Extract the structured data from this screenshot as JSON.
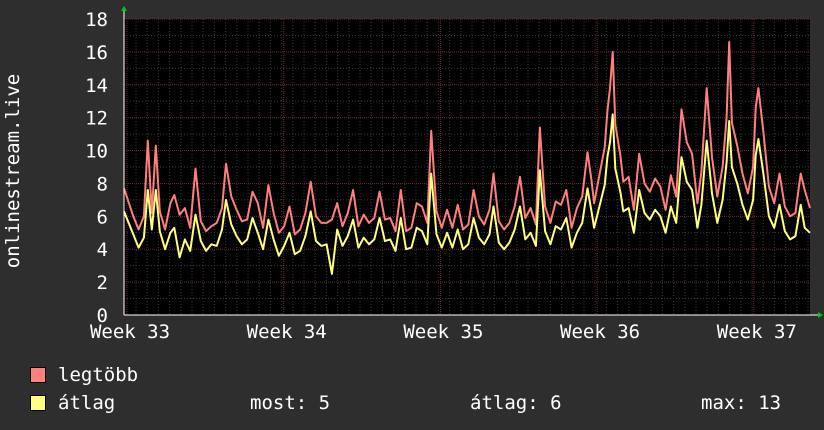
{
  "chart_data": {
    "type": "line",
    "ylabel": "onlinestream.live",
    "ylim": [
      0,
      18
    ],
    "yticks": [
      0,
      2,
      4,
      6,
      8,
      10,
      12,
      14,
      16,
      18
    ],
    "x_tick_labels": [
      "Week 33",
      "Week 34",
      "Week 35",
      "Week 36",
      "Week 37"
    ],
    "x_range_weeks": [
      32.95,
      37.3
    ],
    "series": [
      {
        "name": "legtöbb",
        "color": "#ff7f7f",
        "points": [
          [
            32.95,
            7.7
          ],
          [
            33.02,
            6.0
          ],
          [
            33.06,
            5.2
          ],
          [
            33.1,
            6.0
          ],
          [
            33.13,
            10.6
          ],
          [
            33.16,
            6.2
          ],
          [
            33.19,
            10.3
          ],
          [
            33.22,
            6.3
          ],
          [
            33.26,
            5.2
          ],
          [
            33.3,
            6.8
          ],
          [
            33.33,
            7.3
          ],
          [
            33.37,
            6.1
          ],
          [
            33.41,
            6.5
          ],
          [
            33.45,
            5.3
          ],
          [
            33.49,
            8.9
          ],
          [
            33.53,
            5.7
          ],
          [
            33.57,
            5.1
          ],
          [
            33.61,
            5.4
          ],
          [
            33.65,
            5.6
          ],
          [
            33.69,
            6.5
          ],
          [
            33.72,
            9.2
          ],
          [
            33.76,
            7.2
          ],
          [
            33.8,
            6.4
          ],
          [
            33.84,
            5.7
          ],
          [
            33.88,
            5.8
          ],
          [
            33.92,
            7.5
          ],
          [
            33.96,
            6.8
          ],
          [
            34.0,
            5.3
          ],
          [
            34.04,
            7.9
          ],
          [
            34.08,
            6.2
          ],
          [
            34.12,
            5.0
          ],
          [
            34.16,
            5.4
          ],
          [
            34.2,
            6.6
          ],
          [
            34.24,
            4.9
          ],
          [
            34.28,
            5.2
          ],
          [
            34.32,
            6.2
          ],
          [
            34.36,
            8.1
          ],
          [
            34.4,
            6.0
          ],
          [
            34.44,
            5.6
          ],
          [
            34.48,
            5.6
          ],
          [
            34.52,
            5.8
          ],
          [
            34.56,
            6.8
          ],
          [
            34.6,
            5.4
          ],
          [
            34.64,
            6.2
          ],
          [
            34.68,
            7.6
          ],
          [
            34.72,
            5.4
          ],
          [
            34.76,
            6.1
          ],
          [
            34.8,
            5.6
          ],
          [
            34.84,
            5.9
          ],
          [
            34.88,
            7.5
          ],
          [
            34.92,
            5.8
          ],
          [
            34.96,
            5.9
          ],
          [
            35.0,
            5.1
          ],
          [
            35.04,
            7.6
          ],
          [
            35.08,
            5.1
          ],
          [
            35.12,
            5.3
          ],
          [
            35.16,
            6.8
          ],
          [
            35.2,
            6.6
          ],
          [
            35.24,
            5.6
          ],
          [
            35.27,
            11.2
          ],
          [
            35.31,
            6.3
          ],
          [
            35.35,
            5.3
          ],
          [
            35.39,
            6.4
          ],
          [
            35.43,
            5.3
          ],
          [
            35.47,
            6.7
          ],
          [
            35.51,
            5.2
          ],
          [
            35.55,
            5.5
          ],
          [
            35.59,
            7.6
          ],
          [
            35.63,
            6.0
          ],
          [
            35.67,
            5.5
          ],
          [
            35.71,
            6.4
          ],
          [
            35.74,
            8.6
          ],
          [
            35.78,
            5.7
          ],
          [
            35.82,
            5.2
          ],
          [
            35.86,
            5.6
          ],
          [
            35.9,
            6.6
          ],
          [
            35.94,
            8.4
          ],
          [
            35.98,
            5.9
          ],
          [
            36.02,
            6.5
          ],
          [
            36.06,
            5.5
          ],
          [
            36.09,
            11.4
          ],
          [
            36.13,
            6.6
          ],
          [
            36.17,
            5.6
          ],
          [
            36.21,
            6.9
          ],
          [
            36.25,
            6.7
          ],
          [
            36.29,
            7.6
          ],
          [
            36.33,
            5.3
          ],
          [
            36.37,
            6.5
          ],
          [
            36.41,
            7.2
          ],
          [
            36.45,
            9.9
          ],
          [
            36.48,
            8.2
          ],
          [
            36.5,
            6.8
          ],
          [
            36.54,
            8.5
          ],
          [
            36.58,
            10.2
          ],
          [
            36.6,
            12.4
          ],
          [
            36.62,
            13.8
          ],
          [
            36.64,
            16.0
          ],
          [
            36.66,
            11.6
          ],
          [
            36.7,
            9.6
          ],
          [
            36.72,
            8.1
          ],
          [
            36.76,
            8.4
          ],
          [
            36.8,
            6.4
          ],
          [
            36.84,
            9.8
          ],
          [
            36.88,
            8.0
          ],
          [
            36.92,
            7.5
          ],
          [
            36.96,
            8.3
          ],
          [
            37.0,
            7.8
          ],
          [
            37.04,
            6.4
          ],
          [
            37.08,
            8.5
          ],
          [
            37.12,
            7.2
          ],
          [
            37.16,
            12.5
          ],
          [
            37.2,
            10.5
          ],
          [
            37.24,
            9.8
          ],
          [
            37.28,
            6.8
          ],
          [
            37.31,
            8.7
          ],
          [
            37.33,
            11.3
          ],
          [
            37.35,
            13.8
          ],
          [
            37.39,
            9.6
          ],
          [
            37.43,
            7.2
          ],
          [
            37.47,
            9.0
          ],
          [
            37.5,
            12.0
          ],
          [
            37.52,
            16.6
          ],
          [
            37.54,
            11.7
          ],
          [
            37.58,
            10.3
          ],
          [
            37.62,
            8.6
          ],
          [
            37.66,
            7.4
          ],
          [
            37.7,
            9.0
          ],
          [
            37.72,
            12.6
          ],
          [
            37.74,
            13.8
          ],
          [
            37.78,
            11.0
          ],
          [
            37.82,
            7.8
          ],
          [
            37.86,
            6.8
          ],
          [
            37.9,
            8.6
          ],
          [
            37.94,
            6.6
          ],
          [
            37.98,
            6.0
          ],
          [
            38.02,
            6.2
          ],
          [
            38.06,
            8.6
          ],
          [
            38.09,
            7.6
          ],
          [
            38.13,
            6.5
          ]
        ]
      },
      {
        "name": "átlag",
        "color": "#ffff7f",
        "points": [
          [
            32.95,
            6.3
          ],
          [
            33.02,
            4.9
          ],
          [
            33.06,
            4.1
          ],
          [
            33.1,
            4.7
          ],
          [
            33.13,
            7.6
          ],
          [
            33.16,
            5.2
          ],
          [
            33.19,
            7.6
          ],
          [
            33.22,
            5.1
          ],
          [
            33.26,
            4.0
          ],
          [
            33.3,
            5.0
          ],
          [
            33.33,
            5.3
          ],
          [
            33.37,
            3.5
          ],
          [
            33.41,
            4.6
          ],
          [
            33.45,
            3.9
          ],
          [
            33.49,
            6.1
          ],
          [
            33.53,
            4.5
          ],
          [
            33.57,
            3.9
          ],
          [
            33.61,
            4.3
          ],
          [
            33.65,
            4.2
          ],
          [
            33.69,
            5.2
          ],
          [
            33.72,
            7.0
          ],
          [
            33.76,
            5.5
          ],
          [
            33.8,
            4.8
          ],
          [
            33.84,
            4.3
          ],
          [
            33.88,
            4.6
          ],
          [
            33.92,
            5.9
          ],
          [
            33.96,
            5.0
          ],
          [
            34.0,
            4.0
          ],
          [
            34.04,
            5.8
          ],
          [
            34.08,
            4.6
          ],
          [
            34.12,
            3.6
          ],
          [
            34.16,
            4.2
          ],
          [
            34.2,
            5.0
          ],
          [
            34.24,
            3.7
          ],
          [
            34.28,
            3.9
          ],
          [
            34.32,
            4.8
          ],
          [
            34.36,
            6.3
          ],
          [
            34.4,
            4.5
          ],
          [
            34.44,
            4.2
          ],
          [
            34.48,
            4.3
          ],
          [
            34.52,
            2.5
          ],
          [
            34.56,
            5.2
          ],
          [
            34.6,
            4.2
          ],
          [
            34.64,
            4.8
          ],
          [
            34.68,
            5.8
          ],
          [
            34.72,
            4.1
          ],
          [
            34.76,
            4.7
          ],
          [
            34.8,
            4.3
          ],
          [
            34.84,
            4.6
          ],
          [
            34.88,
            5.9
          ],
          [
            34.92,
            4.5
          ],
          [
            34.96,
            4.6
          ],
          [
            35.0,
            3.9
          ],
          [
            35.04,
            5.9
          ],
          [
            35.08,
            4.0
          ],
          [
            35.12,
            4.1
          ],
          [
            35.16,
            5.3
          ],
          [
            35.2,
            5.1
          ],
          [
            35.24,
            4.3
          ],
          [
            35.27,
            8.6
          ],
          [
            35.31,
            4.9
          ],
          [
            35.35,
            4.1
          ],
          [
            35.39,
            5.0
          ],
          [
            35.43,
            4.1
          ],
          [
            35.47,
            5.2
          ],
          [
            35.51,
            4.0
          ],
          [
            35.55,
            4.3
          ],
          [
            35.59,
            5.9
          ],
          [
            35.63,
            4.7
          ],
          [
            35.67,
            4.3
          ],
          [
            35.71,
            4.9
          ],
          [
            35.74,
            6.6
          ],
          [
            35.78,
            4.4
          ],
          [
            35.82,
            4.0
          ],
          [
            35.86,
            4.4
          ],
          [
            35.9,
            5.2
          ],
          [
            35.94,
            6.6
          ],
          [
            35.98,
            4.6
          ],
          [
            36.02,
            5.0
          ],
          [
            36.06,
            4.2
          ],
          [
            36.09,
            8.8
          ],
          [
            36.13,
            5.1
          ],
          [
            36.17,
            4.3
          ],
          [
            36.21,
            5.4
          ],
          [
            36.25,
            5.2
          ],
          [
            36.29,
            5.9
          ],
          [
            36.33,
            4.1
          ],
          [
            36.37,
            5.0
          ],
          [
            36.41,
            5.6
          ],
          [
            36.45,
            7.7
          ],
          [
            36.48,
            6.3
          ],
          [
            36.5,
            5.3
          ],
          [
            36.54,
            6.6
          ],
          [
            36.58,
            7.9
          ],
          [
            36.6,
            9.6
          ],
          [
            36.62,
            10.5
          ],
          [
            36.64,
            12.2
          ],
          [
            36.66,
            8.9
          ],
          [
            36.7,
            7.4
          ],
          [
            36.72,
            6.3
          ],
          [
            36.76,
            6.5
          ],
          [
            36.8,
            5.0
          ],
          [
            36.84,
            7.6
          ],
          [
            36.88,
            6.2
          ],
          [
            36.92,
            5.8
          ],
          [
            36.96,
            6.4
          ],
          [
            37.0,
            6.0
          ],
          [
            37.04,
            5.0
          ],
          [
            37.08,
            6.6
          ],
          [
            37.12,
            5.6
          ],
          [
            37.16,
            9.6
          ],
          [
            37.2,
            8.1
          ],
          [
            37.24,
            7.6
          ],
          [
            37.28,
            5.3
          ],
          [
            37.31,
            6.7
          ],
          [
            37.33,
            8.7
          ],
          [
            37.35,
            10.6
          ],
          [
            37.39,
            7.4
          ],
          [
            37.43,
            5.6
          ],
          [
            37.47,
            7.0
          ],
          [
            37.5,
            9.3
          ],
          [
            37.52,
            11.8
          ],
          [
            37.54,
            9.0
          ],
          [
            37.58,
            8.0
          ],
          [
            37.62,
            6.7
          ],
          [
            37.66,
            5.8
          ],
          [
            37.7,
            7.0
          ],
          [
            37.72,
            9.7
          ],
          [
            37.74,
            10.7
          ],
          [
            37.78,
            8.5
          ],
          [
            37.82,
            6.0
          ],
          [
            37.86,
            5.3
          ],
          [
            37.9,
            6.7
          ],
          [
            37.94,
            5.1
          ],
          [
            37.98,
            4.6
          ],
          [
            38.02,
            4.8
          ],
          [
            38.06,
            6.7
          ],
          [
            38.09,
            5.3
          ],
          [
            38.13,
            5.0
          ]
        ]
      }
    ],
    "grid": true
  },
  "legend": {
    "items": [
      {
        "label": "legtöbb",
        "color": "#ff7f7f"
      },
      {
        "label": "átlag",
        "color": "#ffff7f"
      }
    ],
    "stats": {
      "most": "most: 5",
      "atlag": "átlag: 6",
      "max": "max: 13"
    }
  },
  "colors": {
    "background": "#2e2e2e",
    "plot_background": "#000000",
    "grid_minor": "#3a3a3a",
    "grid_major": "#6a2a2a",
    "axis_arrow": "#00cc00"
  }
}
